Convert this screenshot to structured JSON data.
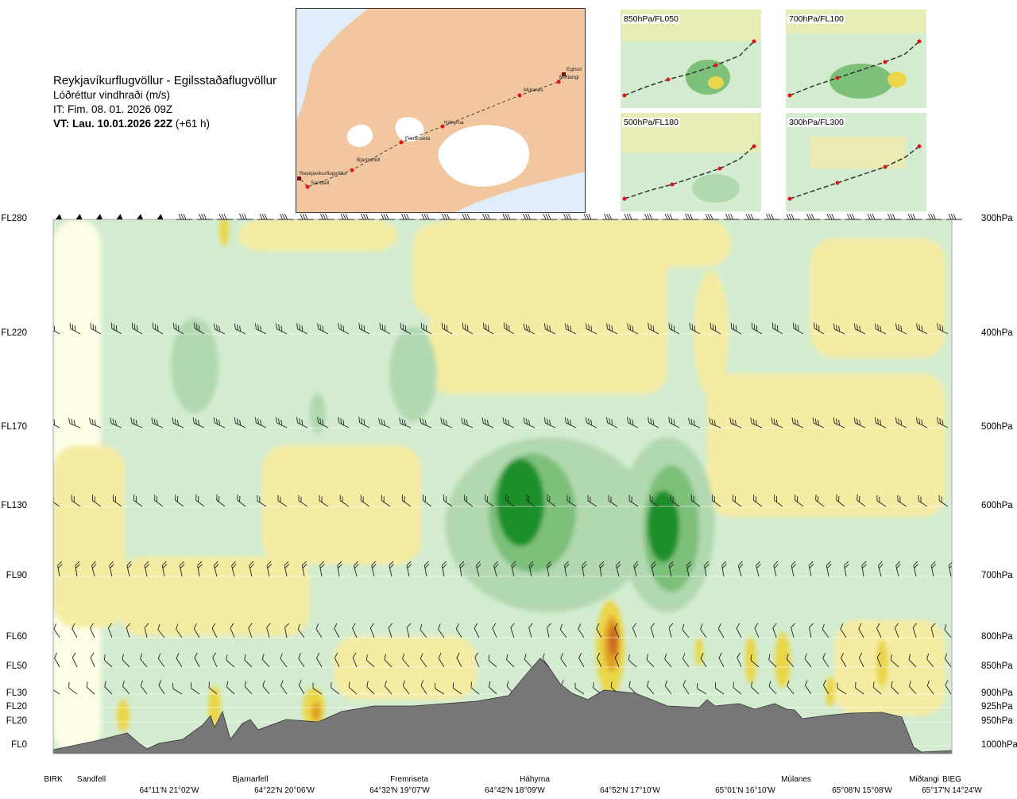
{
  "header": {
    "route": "Reykjavíkurflugvöllur - Egilsstaðaflugvöllur",
    "variable": "Lóðréttur vindhraði (m/s)",
    "issue_time": "IT: Fim. 08. 01. 2026 09Z",
    "valid_time_bold": "VT: Lau. 10.01.2026 22Z",
    "valid_time_offset": "(+61 h)"
  },
  "map": {
    "waypoints": [
      "Reykjavíkurflugvöllur",
      "Sandfell",
      "Bjarnarfell",
      "Fremriseta",
      "Háhyrna",
      "Múlanes",
      "Miðtangi",
      "Egilsst"
    ],
    "colors": {
      "sea": "#dfeefa",
      "land": "#f2c7a0",
      "glacier": "#ffffff",
      "route": "#444444",
      "point": "#e0141c"
    }
  },
  "level_maps": [
    {
      "label": "850hPa/FL050"
    },
    {
      "label": "700hPa/FL100"
    },
    {
      "label": "500hPa/FL180"
    },
    {
      "label": "300hPa/FL300"
    }
  ],
  "chart_data": {
    "type": "heatmap",
    "title": "Lóðréttur vindhraði (m/s)",
    "left_axis": [
      "FL280",
      "FL220",
      "FL170",
      "FL130",
      "FL90",
      "FL60",
      "FL50",
      "FL30",
      "FL20",
      "FL20",
      "FL0"
    ],
    "right_axis": [
      "300hPa",
      "400hPa",
      "500hPa",
      "600hPa",
      "700hPa",
      "800hPa",
      "850hPa",
      "900hPa",
      "925hPa",
      "950hPa",
      "1000hPa"
    ],
    "x_waypoints": [
      "BIRK",
      "Sandfell",
      "Bjarnarfell",
      "Fremriseta",
      "Háhyrna",
      "Múlanes",
      "Miðtangi",
      "BIEG"
    ],
    "x_coordinates": [
      "64°11'N 21°02'W",
      "64°22'N 20°06'W",
      "64°32'N 19°07'W",
      "64°42'N 18°09'W",
      "64°52'N 17°10'W",
      "65°01'N 16°10'W",
      "65°08'N 15°08'W",
      "65°17'N 14°24'W"
    ],
    "colors": {
      "strong_down": "#1f8f2a",
      "moderate_down": "#7cc07a",
      "weak_down": "#b2d8b0",
      "slight_down": "#d3ecd0",
      "neutral": "#fefde6",
      "slight_up": "#f5eca4",
      "moderate_up": "#ead64a",
      "strong_up": "#e0a020",
      "very_strong_up": "#d06a20",
      "terrain": "#777777"
    }
  }
}
